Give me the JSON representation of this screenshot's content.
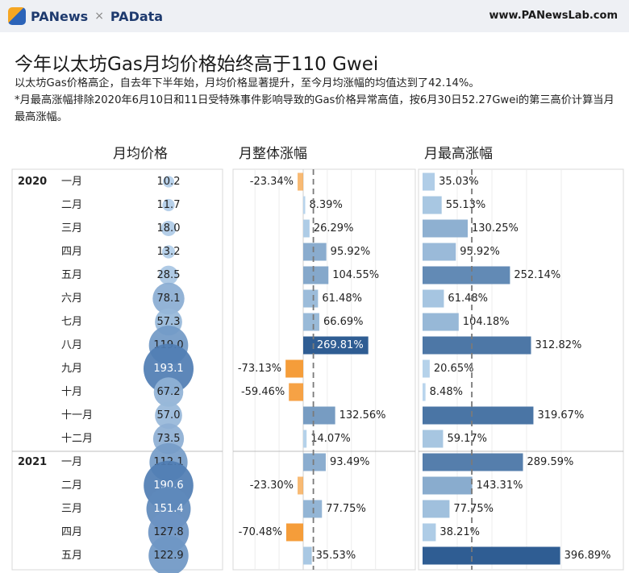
{
  "header": {
    "brand_pan": "PANews",
    "brand_sep": "×",
    "brand_pad": "PAData",
    "url": "www.PANewsLab.com"
  },
  "title": "今年以太坊Gas月均价格始终高于110 Gwei",
  "subtitle_line1": "以太坊Gas价格高企，自去年下半年始，月均价格显著提升，至今月均涨幅的均值达到了42.14%。",
  "subtitle_line2": "*月最高涨幅排除2020年6月10日和11日受特殊事件影响导致的Gas价格异常高值，按6月30日52.27Gwei的第三高价计算当月最高涨幅。",
  "columns": {
    "avg": "月均价格",
    "overall": "月整体涨幅",
    "max": "月最高涨幅"
  },
  "colors": {
    "bubble": "#4f7db3",
    "negative": "#f59d3a",
    "positive_light": "#bcd8ef",
    "positive_dark": "#2f5d93",
    "reference_line": "#7a7a7a"
  },
  "chart_data": {
    "type": "bar",
    "years": [
      {
        "year": "2020",
        "months": [
          "一月",
          "二月",
          "三月",
          "四月",
          "五月",
          "六月",
          "七月",
          "八月",
          "九月",
          "十月",
          "十一月",
          "十二月"
        ]
      },
      {
        "year": "2021",
        "months": [
          "一月",
          "二月",
          "三月",
          "四月",
          "五月"
        ]
      }
    ],
    "categories": [
      "2020 一月",
      "2020 二月",
      "2020 三月",
      "2020 四月",
      "2020 五月",
      "2020 六月",
      "2020 七月",
      "2020 八月",
      "2020 九月",
      "2020 十月",
      "2020 十一月",
      "2020 十二月",
      "2021 一月",
      "2021 二月",
      "2021 三月",
      "2021 四月",
      "2021 五月"
    ],
    "series": [
      {
        "name": "月均价格",
        "unit": "Gwei",
        "values": [
          10.2,
          11.7,
          18.0,
          13.2,
          28.5,
          78.1,
          57.3,
          119.0,
          193.1,
          67.2,
          57.0,
          73.5,
          112.1,
          190.6,
          151.4,
          127.8,
          122.9
        ],
        "labels": [
          "10.2",
          "11.7",
          "18.0",
          "13.2",
          "28.5",
          "78.1",
          "57.3",
          "119.0",
          "193.1",
          "67.2",
          "57.0",
          "73.5",
          "112.1",
          "190.6",
          "151.4",
          "127.8",
          "122.9"
        ]
      },
      {
        "name": "月整体涨幅",
        "unit": "%",
        "values": [
          -23.34,
          8.39,
          26.29,
          95.92,
          104.55,
          61.48,
          66.69,
          269.81,
          -73.13,
          -59.46,
          132.56,
          14.07,
          93.49,
          -23.3,
          77.75,
          -70.48,
          35.53
        ],
        "labels": [
          "-23.34%",
          "8.39%",
          "26.29%",
          "95.92%",
          "104.55%",
          "61.48%",
          "66.69%",
          "269.81%",
          "-73.13%",
          "-59.46%",
          "132.56%",
          "14.07%",
          "93.49%",
          "-23.30%",
          "77.75%",
          "-70.48%",
          "35.53%"
        ]
      },
      {
        "name": "月最高涨幅",
        "unit": "%",
        "values": [
          35.03,
          55.13,
          130.25,
          95.92,
          252.14,
          61.48,
          104.18,
          312.82,
          20.65,
          8.48,
          319.67,
          59.17,
          289.59,
          143.31,
          77.75,
          38.21,
          396.89
        ],
        "labels": [
          "35.03%",
          "55.13%",
          "130.25%",
          "95.92%",
          "252.14%",
          "61.48%",
          "104.18%",
          "312.82%",
          "20.65%",
          "8.48%",
          "319.67%",
          "59.17%",
          "289.59%",
          "143.31%",
          "77.75%",
          "38.21%",
          "396.89%"
        ]
      }
    ],
    "reference_lines": {
      "月整体涨幅": 42.14
    },
    "grid": true
  }
}
